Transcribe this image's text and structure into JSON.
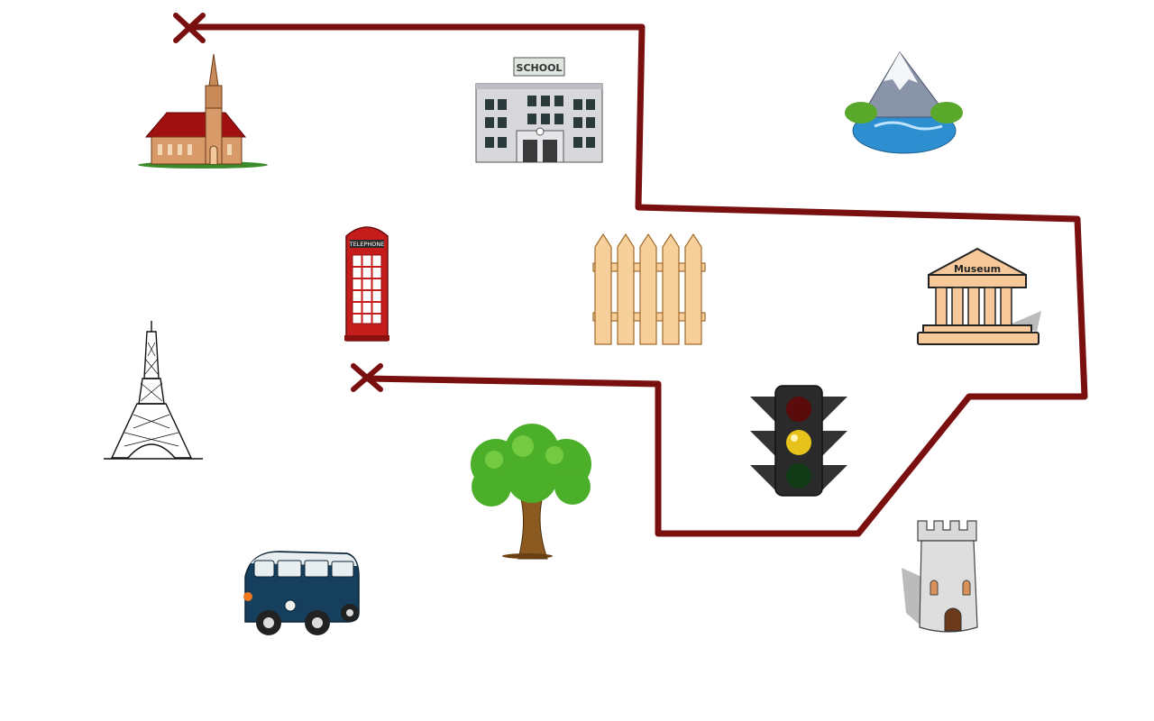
{
  "scene": {
    "path_color": "#7a0f0f",
    "background": "#ffffff",
    "markers": [
      {
        "name": "start-cross-marker",
        "symbol": "✕"
      },
      {
        "name": "end-cross-marker",
        "symbol": "✕"
      }
    ],
    "landmarks": [
      {
        "name": "church-icon"
      },
      {
        "name": "school-icon",
        "sign_text": "SCHOOL"
      },
      {
        "name": "mountain-lake-icon"
      },
      {
        "name": "telephone-booth-icon",
        "sign_text": "TELEPHONE"
      },
      {
        "name": "fence-icon"
      },
      {
        "name": "museum-icon",
        "sign_text": "Museum"
      },
      {
        "name": "eiffel-tower-icon"
      },
      {
        "name": "traffic-light-icon"
      },
      {
        "name": "tree-icon"
      },
      {
        "name": "van-icon"
      },
      {
        "name": "tower-icon"
      }
    ]
  }
}
